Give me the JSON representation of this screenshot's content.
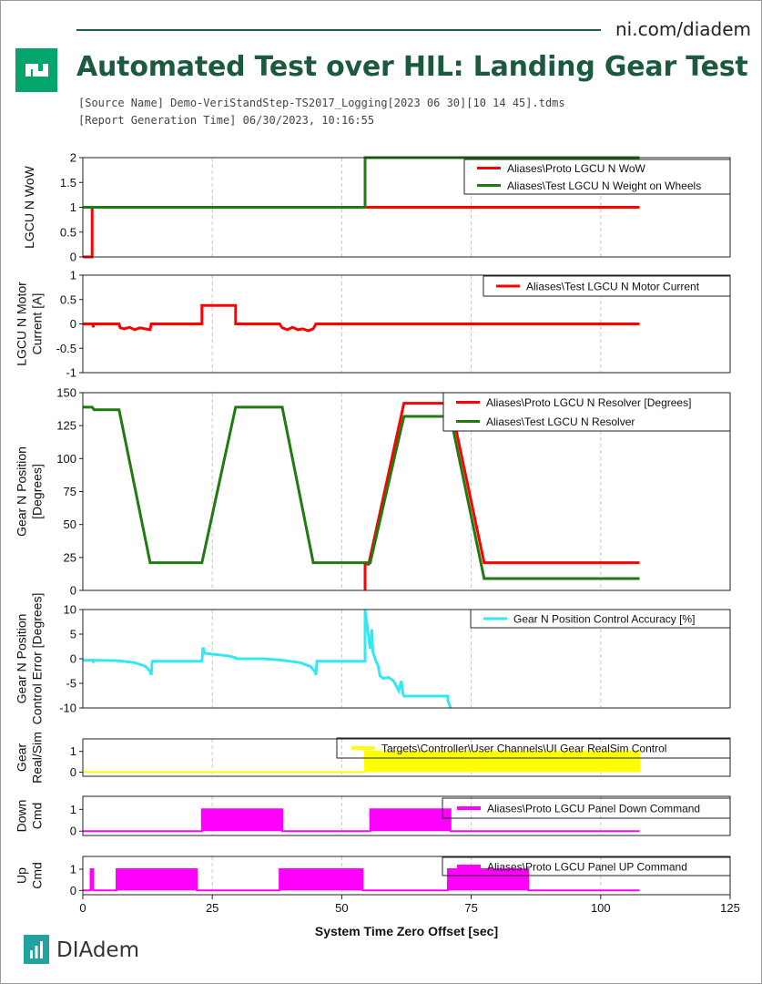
{
  "header": {
    "site": "ni.com/diadem",
    "logo_text": "ni",
    "title": "Automated Test over HIL: Landing Gear Test",
    "source_line": "[Source Name] Demo-VeriStandStep-TS2017_Logging[2023 06 30][10 14 45].tdms",
    "generation_line": "[Report Generation Time] 06/30/2023, 10:16:55"
  },
  "footer": {
    "brand": "DIAdem"
  },
  "colors": {
    "title": "#1c5a3f",
    "logo": "#03a56b",
    "red": "#ff0000",
    "green": "#1f7a0f",
    "cyan": "#33e8f2",
    "yellow": "#ffff00",
    "magenta": "#ff00ff"
  },
  "chart_data": {
    "type": "line",
    "xlabel": "System Time Zero Offset [sec]",
    "xlim": [
      0,
      125
    ],
    "xticks": [
      0,
      25,
      50,
      75,
      100,
      125
    ],
    "panels": [
      {
        "ylabel": [
          "LGCU N WoW"
        ],
        "ylim": [
          0,
          2
        ],
        "yticks": [
          0,
          0.5,
          1,
          1.5,
          2
        ],
        "ytick_labels": [
          "0",
          "0.5",
          "1",
          "1.5",
          "2"
        ],
        "legend": "top-right",
        "series": [
          {
            "name": "Aliases\\Proto LGCU N WoW",
            "color": "#ff0000",
            "kind": "line",
            "x": [
              0,
              1.8,
              1.8,
              107.5
            ],
            "y": [
              0,
              0,
              1,
              1
            ]
          },
          {
            "name": "Aliases\\Test LGCU N Weight on Wheels",
            "color": "#1f7a0f",
            "kind": "line",
            "x": [
              0,
              54.5,
              54.5,
              107.5
            ],
            "y": [
              1,
              1,
              2,
              2
            ]
          }
        ]
      },
      {
        "ylabel": [
          "LGCU N Motor",
          "Current [A]"
        ],
        "ylim": [
          -1,
          1
        ],
        "yticks": [
          -1,
          -0.5,
          0,
          0.5,
          1
        ],
        "ytick_labels": [
          "-1",
          "-0.5",
          "0",
          "0.5",
          "1"
        ],
        "legend": "top-right",
        "series": [
          {
            "name": "Aliases\\Test LGCU N Motor Current",
            "color": "#ff0000",
            "kind": "line",
            "x": [
              0,
              1.9,
              2,
              2.1,
              2.2,
              7,
              7.2,
              8,
              9,
              10,
              11,
              12,
              13,
              13.2,
              23,
              23,
              29.5,
              29.5,
              38,
              38.5,
              39.5,
              40.5,
              41.5,
              42.5,
              43.5,
              44.5,
              45,
              107.5
            ],
            "y": [
              0,
              0,
              -0.07,
              0,
              0,
              0,
              -0.08,
              -0.1,
              -0.07,
              -0.12,
              -0.08,
              -0.1,
              -0.12,
              0,
              0,
              0.38,
              0.38,
              0,
              0,
              -0.08,
              -0.12,
              -0.07,
              -0.12,
              -0.1,
              -0.14,
              -0.1,
              0,
              0
            ]
          }
        ]
      },
      {
        "ylabel": [
          "Gear N Position",
          "[Degrees]"
        ],
        "ylim": [
          0,
          150
        ],
        "yticks": [
          0,
          25,
          50,
          75,
          100,
          125,
          150
        ],
        "ytick_labels": [
          "0",
          "25",
          "50",
          "75",
          "100",
          "125",
          "150"
        ],
        "legend": "top-right",
        "series": [
          {
            "name": "Aliases\\Proto LGCU N Resolver [Degrees]",
            "color": "#ff0000",
            "kind": "line",
            "x": [
              54.5,
              54.5,
              55.2,
              62,
              71,
              77.5,
              107.5
            ],
            "y": [
              0,
              20,
              20,
              142,
              142,
              21,
              21
            ]
          },
          {
            "name": "Aliases\\Test LGCU N Resolver",
            "color": "#1f7a0f",
            "kind": "line",
            "x": [
              0,
              1.8,
              2.2,
              7,
              13,
              23,
              29.5,
              38.5,
              44.5,
              55.5,
              62,
              71,
              77.5,
              107.5
            ],
            "y": [
              139,
              139,
              137,
              137,
              21,
              21,
              139,
              139,
              21,
              21,
              132,
              132,
              9,
              9
            ]
          }
        ]
      },
      {
        "ylabel": [
          "Gear N Position",
          "Control Error [Degrees]"
        ],
        "ylim": [
          -10,
          10
        ],
        "yticks": [
          -10,
          -5,
          0,
          5,
          10
        ],
        "ytick_labels": [
          "-10",
          "-5",
          "0",
          "5",
          "10"
        ],
        "legend": "top-right",
        "series": [
          {
            "name": "Gear N Position Control Accuracy [%]",
            "color": "#33e8f2",
            "kind": "line",
            "x": [
              0,
              1.8,
              2,
              2.2,
              7,
              10,
              12,
              13,
              13.2,
              13.4,
              23,
              23.2,
              23.6,
              24.5,
              28,
              29.5,
              29.6,
              35,
              38.5,
              42,
              44,
              44.8,
              45,
              45.2,
              54.5,
              54.5,
              55.5,
              55.8,
              56,
              56.6,
              57,
              57.4,
              58,
              59,
              60,
              61,
              61.5,
              61.8,
              62,
              70.5,
              70.5,
              71
            ],
            "y": [
              -0.3,
              -0.3,
              -0.6,
              -0.3,
              -0.4,
              -0.8,
              -1.5,
              -2.5,
              -3.3,
              -0.5,
              -0.5,
              2.3,
              1.1,
              1,
              0.6,
              0.2,
              0,
              0,
              -0.3,
              -0.8,
              -1.6,
              -2.6,
              -3.3,
              -0.5,
              -0.5,
              10,
              2,
              6,
              1.5,
              -0.5,
              -1.3,
              -3.5,
              -4,
              -3.8,
              -4.5,
              -6.5,
              -4.5,
              -7,
              -7.6,
              -7.6,
              -8.5,
              -10
            ]
          }
        ]
      },
      {
        "ylabel": [
          "Gear",
          "Real/Sim"
        ],
        "ylim": [
          -0.2,
          1.6
        ],
        "yticks": [
          0,
          1
        ],
        "ytick_labels": [
          "0",
          "1"
        ],
        "legend": "top-right",
        "series": [
          {
            "name": "Targets\\Controller\\User Channels\\UI Gear RealSim Control",
            "color": "#ffff00",
            "kind": "bars",
            "x": [
              0,
              54.5,
              54.5,
              107.5,
              107.5
            ],
            "y": [
              0,
              0,
              1,
              1,
              0
            ],
            "line_width": 2
          }
        ]
      },
      {
        "ylabel": [
          "Down",
          "Cmd"
        ],
        "ylim": [
          -0.2,
          1.6
        ],
        "yticks": [
          0,
          1
        ],
        "ytick_labels": [
          "0",
          "1"
        ],
        "legend": "top-right",
        "series": [
          {
            "name": "Aliases\\Proto LGCU Panel Down Command",
            "color": "#ff00ff",
            "kind": "bars",
            "x": [
              0,
              23,
              23,
              38.5,
              38.5,
              55.5,
              55.5,
              71,
              71,
              107.5
            ],
            "y": [
              0,
              0,
              1,
              1,
              0,
              0,
              1,
              1,
              0,
              0
            ],
            "line_width": 2
          }
        ]
      },
      {
        "ylabel": [
          "Up",
          "Cmd"
        ],
        "ylim": [
          -0.2,
          1.6
        ],
        "yticks": [
          0,
          1
        ],
        "ytick_labels": [
          "0",
          "1"
        ],
        "legend": "top-right",
        "series": [
          {
            "name": "Aliases\\Proto LGCU Panel UP Command",
            "color": "#ff00ff",
            "kind": "bars",
            "x": [
              0,
              1.5,
              1.5,
              2,
              2,
              6.5,
              6.5,
              22,
              22,
              38,
              38,
              54,
              54,
              70.5,
              70.5,
              86,
              86,
              107.5
            ],
            "y": [
              0,
              0,
              1,
              1,
              0,
              0,
              1,
              1,
              0,
              0,
              1,
              1,
              0,
              0,
              1,
              1,
              0,
              0
            ],
            "line_width": 2
          }
        ]
      }
    ]
  }
}
